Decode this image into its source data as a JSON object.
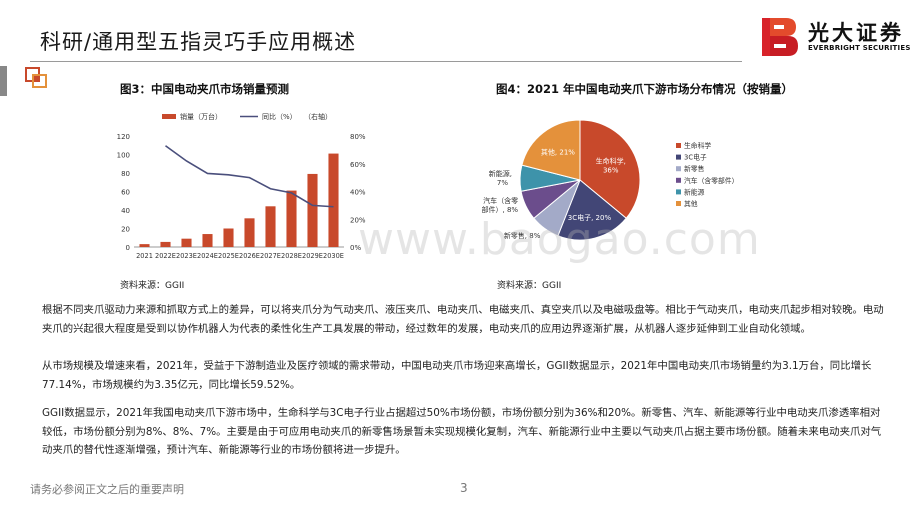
{
  "header": {
    "title": "科研/通用型五指灵巧手应用概述",
    "logo_cn": "光大证券",
    "logo_en": "EVERBRIGHT SECURITIES"
  },
  "figures": {
    "fig3_title": "图3：中国电动夹爪市场销量预测",
    "fig4_title": "图4：2021 年中国电动夹爪下游市场分布情况（按销量）",
    "fig3_source": "资料来源：GGII",
    "fig4_source": "资料来源：GGII"
  },
  "chart_data": [
    {
      "type": "bar",
      "categories": [
        "2021",
        "2022E",
        "2023E",
        "2024E",
        "2025E",
        "2026E",
        "2027E",
        "2028E",
        "2029E",
        "2030E"
      ],
      "series": [
        {
          "name": "销量（万台）",
          "type": "bar",
          "axis": "left",
          "color": "#c8492b",
          "values": [
            3.1,
            5.5,
            9,
            14,
            20,
            31,
            44,
            61,
            79,
            101
          ]
        },
        {
          "name": "同比（%）（右轴）",
          "type": "line",
          "axis": "right",
          "color": "#4a4f7c",
          "values": [
            null,
            73,
            62,
            53,
            52,
            50,
            42,
            39,
            30,
            29
          ]
        }
      ],
      "legend": [
        "销量（万台）",
        "同比（%）",
        "（右轴）"
      ],
      "ylim": [
        0,
        120
      ],
      "yticks": [
        "0",
        "20",
        "40",
        "60",
        "80",
        "100",
        "120"
      ],
      "y2lim": [
        0,
        80
      ],
      "y2ticks": [
        "0%",
        "20%",
        "40%",
        "60%",
        "80%"
      ]
    },
    {
      "type": "pie",
      "slices": [
        {
          "label": "生命科学",
          "value": 36,
          "color": "#c8492b",
          "text": "生命科学,",
          "pct": "36%"
        },
        {
          "label": "3C电子",
          "value": 20,
          "color": "#424676",
          "text": "3C电子, 20%"
        },
        {
          "label": "新零售",
          "value": 8,
          "color": "#a3aac8",
          "text": "新零售, 8%"
        },
        {
          "label": "汽车（含零部件）",
          "value": 8,
          "color": "#6b4d8c",
          "text": "汽车（含零",
          "text2": "部件）, 8%"
        },
        {
          "label": "新能源",
          "value": 7,
          "color": "#3e93aa",
          "text": "新能源,",
          "pct": "7%"
        },
        {
          "label": "其他",
          "value": 21,
          "color": "#e4913b",
          "text": "其他, 21%"
        }
      ],
      "legend": [
        "生命科学",
        "3C电子",
        "新零售",
        "汽车（含零部件）",
        "新能源",
        "其他"
      ]
    }
  ],
  "paragraphs": [
    "根据不同夹爪驱动力来源和抓取方式上的差异，可以将夹爪分为气动夹爪、液压夹爪、电动夹爪、电磁夹爪、真空夹爪以及电磁吸盘等。相比于气动夹爪，电动夹爪起步相对较晚。电动夹爪的兴起很大程度是受到以协作机器人为代表的柔性化生产工具发展的带动，经过数年的发展，电动夹爪的应用边界逐渐扩展，从机器人逐步延伸到工业自动化领域。",
    "从市场规模及增速来看，2021年，受益于下游制造业及医疗领域的需求带动，中国电动夹爪市场迎来高增长，GGII数据显示，2021年中国电动夹爪市场销量约为3.1万台，同比增长77.14%，市场规模约为3.35亿元，同比增长59.52%。",
    "GGII数据显示，2021年我国电动夹爪下游市场中，生命科学与3C电子行业占据超过50%市场份额，市场份额分别为36%和20%。新零售、汽车、新能源等行业中电动夹爪渗透率相对较低，市场份额分别为8%、8%、7%。主要是由于可应用电动夹爪的新零售场景暂未实现规模化复制，汽车、新能源行业中主要以气动夹爪占据主要市场份额。随着未来电动夹爪对气动夹爪的替代性逐渐增强，预计汽车、新能源等行业的市场份额将进一步提升。"
  ],
  "footer": {
    "note": "请务必参阅正文之后的重要声明",
    "page": "3"
  },
  "watermark": "www.baogao.com"
}
